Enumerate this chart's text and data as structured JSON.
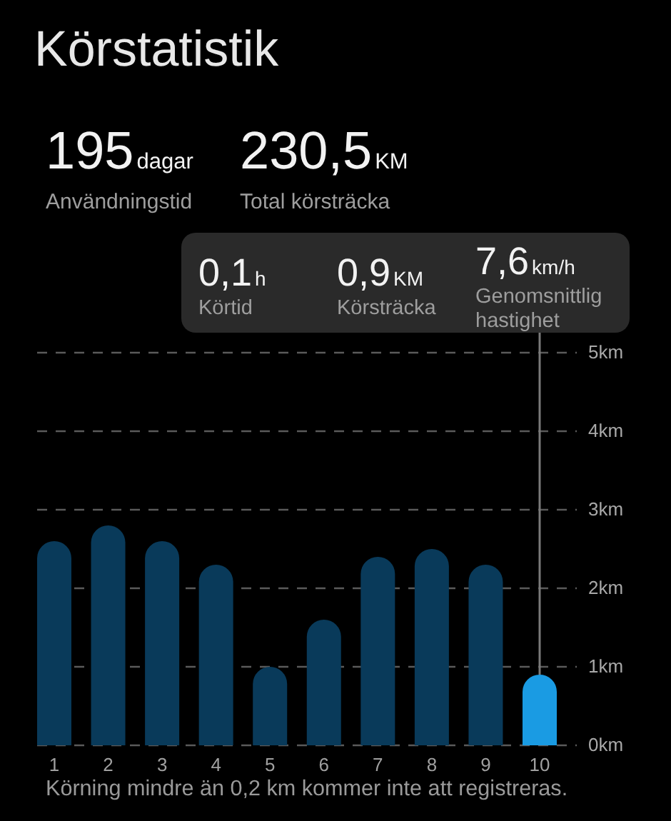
{
  "chart_data": {
    "type": "bar",
    "title": "Körstatistik",
    "categories": [
      "1",
      "2",
      "3",
      "4",
      "5",
      "6",
      "7",
      "8",
      "9",
      "10"
    ],
    "values": [
      2.6,
      2.8,
      2.6,
      2.3,
      1.0,
      1.6,
      2.4,
      2.5,
      2.3,
      0.9
    ],
    "colors": [
      "#093a5a",
      "#093a5a",
      "#093a5a",
      "#093a5a",
      "#093a5a",
      "#093a5a",
      "#093a5a",
      "#093a5a",
      "#093a5a",
      "#1a9be3"
    ],
    "ylim": [
      0,
      5
    ],
    "yticks": [
      {
        "value": 0,
        "label": "0km"
      },
      {
        "value": 1,
        "label": "1km"
      },
      {
        "value": 2,
        "label": "2km"
      },
      {
        "value": 3,
        "label": "3km"
      },
      {
        "value": 4,
        "label": "4km"
      },
      {
        "value": 5,
        "label": "5km"
      }
    ],
    "grid": "y",
    "ref_lines": [
      {
        "axis": "x",
        "value": "10",
        "color": "#7a7a7a"
      }
    ],
    "annotations": [
      "195",
      "dagar",
      "Användningstid",
      "230,5",
      "KM",
      "Total körsträcka",
      "0,1",
      "h",
      "Körtid",
      "0,9",
      "KM",
      "Körsträcka",
      "7,6",
      "km/h",
      "Genomsnittlig hastighet",
      "Körning mindre än 0,2 km kommer inte att registreras."
    ]
  }
}
